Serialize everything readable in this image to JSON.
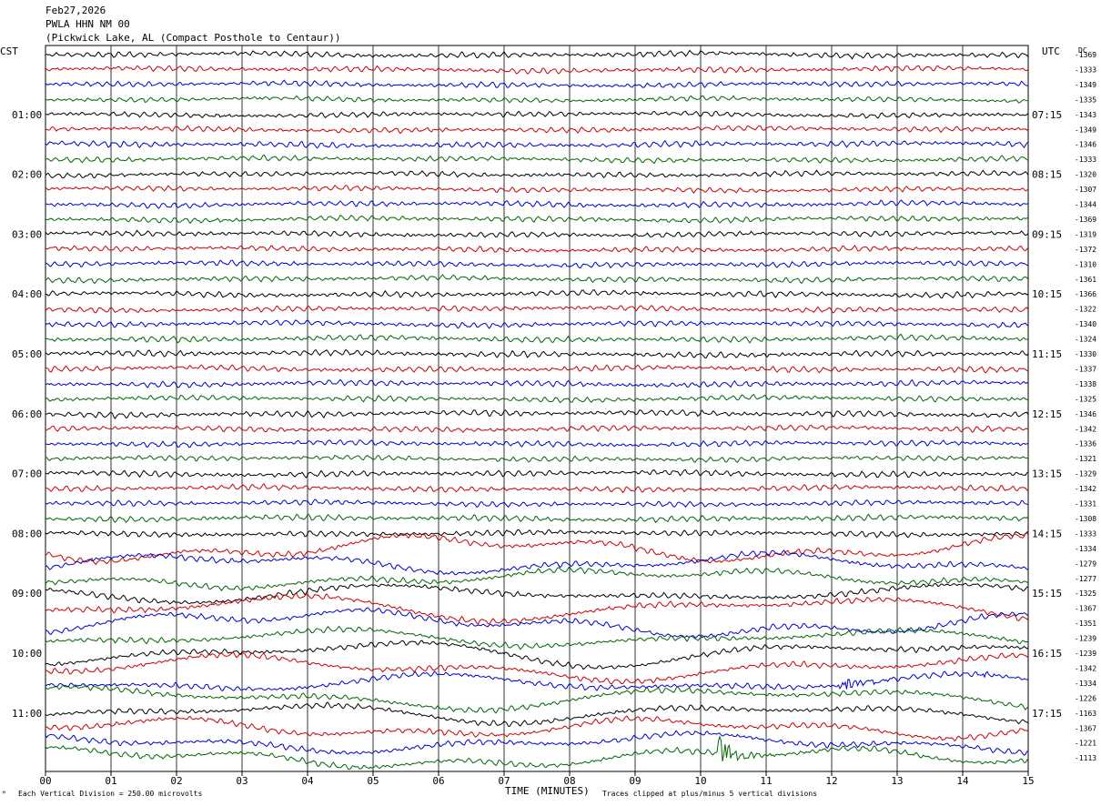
{
  "header": {
    "date": "Feb27,2026",
    "station": "PWLA HHN NM 00",
    "location": "(Pickwick Lake, AL (Compact Posthole to Centaur))"
  },
  "labels": {
    "left_tz": "CST",
    "right_tz": "UTC",
    "dc_header": "DC"
  },
  "footer": {
    "scale_note": "Each Vertical Division =  250.00 microvolts",
    "xlabel": "TIME (MINUTES)",
    "clip_note": "Traces clipped at plus/minus 5 vertical divisions"
  },
  "chart_data": {
    "type": "line",
    "x_ticks": [
      "00",
      "01",
      "02",
      "03",
      "04",
      "05",
      "06",
      "07",
      "08",
      "09",
      "10",
      "11",
      "12",
      "13",
      "14",
      "15"
    ],
    "xlim": [
      0,
      15
    ],
    "rows_per_hour": 4,
    "color_cycle": [
      "#000000",
      "#cc0000",
      "#0000cc",
      "#006600"
    ],
    "left_hour_labels": [
      "01:00",
      "02:00",
      "03:00",
      "04:00",
      "05:00",
      "06:00",
      "07:00",
      "08:00",
      "09:00",
      "10:00",
      "11:00"
    ],
    "right_hour_labels": [
      "07:15",
      "08:15",
      "09:15",
      "10:15",
      "11:15",
      "12:15",
      "13:15",
      "14:15",
      "15:15",
      "16:15",
      "17:15"
    ],
    "dc_offsets": [
      "-1369",
      "-1333",
      "-1349",
      "-1335",
      "-1343",
      "-1349",
      "-1346",
      "-1333",
      "-1320",
      "-1307",
      "-1344",
      "-1369",
      "-1319",
      "-1372",
      "-1310",
      "-1361",
      "-1366",
      "-1322",
      "-1340",
      "-1324",
      "-1330",
      "-1337",
      "-1338",
      "-1325",
      "-1346",
      "-1342",
      "-1336",
      "-1321",
      "-1329",
      "-1342",
      "-1331",
      "-1308",
      "-1333",
      "-1334",
      "-1279",
      "-1277",
      "-1325",
      "-1367",
      "-1351",
      "-1239",
      "-1239",
      "-1342",
      "-1334",
      "-1226",
      "-1163",
      "-1367",
      "-1221",
      "-1113"
    ],
    "events": [
      {
        "row": 42,
        "x": 12.1,
        "duration": 1.4,
        "amplitude": 9,
        "color": "#0000cc"
      },
      {
        "row": 42,
        "x": 14.3,
        "duration": 0.4,
        "amplitude": 4,
        "color": "#0000cc"
      },
      {
        "row": 47,
        "x": 10.25,
        "duration": 1.0,
        "amplitude": 22,
        "color": "#006600"
      }
    ]
  }
}
